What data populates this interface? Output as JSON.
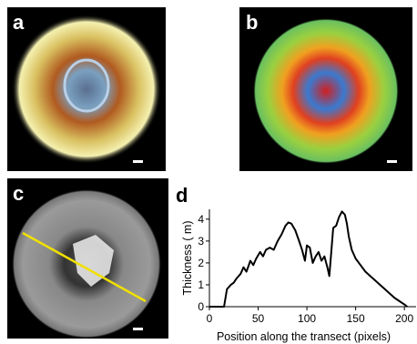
{
  "panels": {
    "a": "a",
    "b": "b",
    "c": "c",
    "d": "d"
  },
  "chart_data": {
    "type": "line",
    "y_label": "Thickness (  m)",
    "x_label": "Position along the transect (pixels)",
    "x": [
      0,
      15,
      18,
      22,
      25,
      28,
      32,
      35,
      38,
      42,
      45,
      48,
      52,
      55,
      58,
      62,
      66,
      70,
      74,
      78,
      81,
      84,
      88,
      92,
      95,
      98,
      100,
      103,
      106,
      109,
      112,
      115,
      118,
      121,
      123,
      125,
      127,
      130,
      133,
      136,
      139,
      141,
      143,
      146,
      150,
      155,
      160,
      165,
      170,
      175,
      180,
      185,
      190,
      195,
      200,
      203
    ],
    "series": [
      {
        "color": "#000000",
        "values": [
          0,
          0,
          0.8,
          1.0,
          1.1,
          1.3,
          1.5,
          1.8,
          1.6,
          2.1,
          1.9,
          2.2,
          2.5,
          2.3,
          2.6,
          2.7,
          2.6,
          3.0,
          3.3,
          3.7,
          3.85,
          3.8,
          3.5,
          3.0,
          2.6,
          2.1,
          2.8,
          2.7,
          2.0,
          2.3,
          2.5,
          2.1,
          2.3,
          1.8,
          1.4,
          2.5,
          3.6,
          3.7,
          4.1,
          4.35,
          4.2,
          3.8,
          3.2,
          2.6,
          2.2,
          1.9,
          1.6,
          1.4,
          1.2,
          1.0,
          0.8,
          0.6,
          0.4,
          0.25,
          0.1,
          0
        ]
      }
    ],
    "xlim": [
      0,
      212
    ],
    "ylim": [
      0,
      4.45
    ],
    "xticks": [
      0,
      50,
      100,
      150,
      200
    ],
    "yticks": [
      0,
      1,
      2,
      3,
      4
    ]
  }
}
